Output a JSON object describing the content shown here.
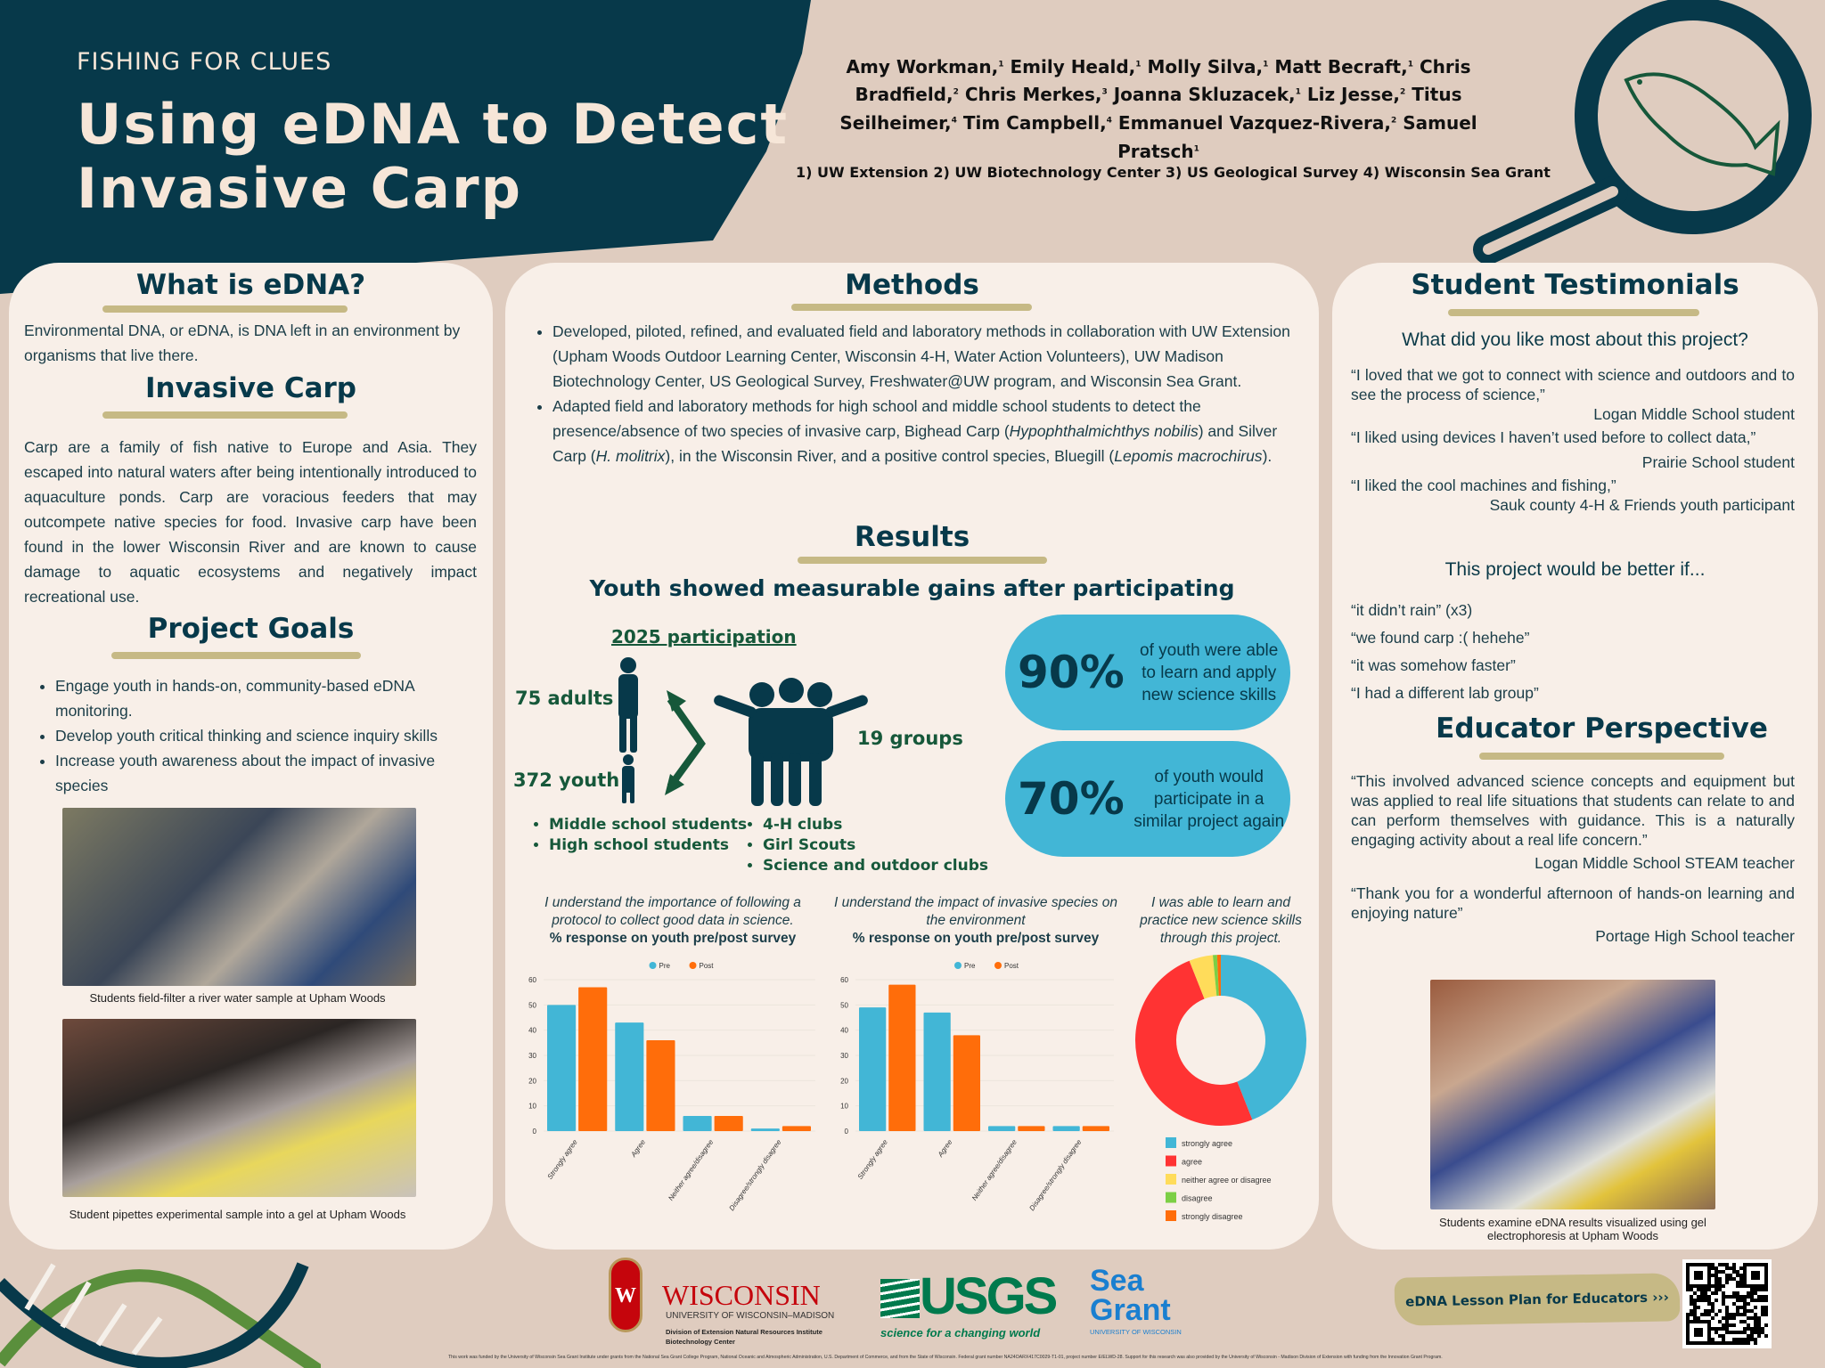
{
  "header": {
    "kicker": "FISHING FOR CLUES",
    "title_line1": "Using eDNA to Detect",
    "title_line2": "Invasive Carp",
    "authors": [
      [
        "Amy Workman",
        "1"
      ],
      [
        "Emily Heald",
        "1"
      ],
      [
        "Molly Silva",
        "1"
      ],
      [
        "Matt Becraft",
        "1"
      ],
      [
        "Chris Bradfield",
        "2"
      ],
      [
        "Chris Merkes",
        "3"
      ],
      [
        "Joanna Skluzacek",
        "1"
      ],
      [
        "Liz Jesse",
        "2"
      ],
      [
        "Titus Seilheimer",
        "4"
      ],
      [
        "Tim Campbell",
        "4"
      ],
      [
        "Emmanuel Vazquez-Rivera",
        "2"
      ],
      [
        "Samuel Pratsch",
        "1"
      ]
    ],
    "affiliations": "1) UW Extension 2) UW Biotechnology Center 3) US Geological Survey 4) Wisconsin Sea Grant"
  },
  "left": {
    "edna_title": "What is eDNA?",
    "edna_text": "Environmental DNA, or eDNA, is DNA left in an environment by organisms that live there.",
    "carp_title": "Invasive Carp",
    "carp_text": "Carp are a family of fish native to Europe and Asia. They escaped into natural waters after being intentionally introduced to aquaculture ponds. Carp are voracious feeders that may outcompete native species for food. Invasive carp have been found in the lower Wisconsin River and are known to cause damage to aquatic ecosystems and negatively impact recreational use.",
    "goals_title": "Project Goals",
    "goals": [
      "Engage youth in hands-on, community-based eDNA monitoring.",
      "Develop youth critical thinking and science inquiry skills",
      "Increase youth awareness about the impact of invasive species"
    ],
    "caption1": "Students field-filter a river water sample at Upham Woods",
    "caption2": "Student pipettes experimental sample into a gel at Upham Woods"
  },
  "methods": {
    "title": "Methods",
    "item1": "Developed, piloted, refined, and evaluated field and laboratory methods in collaboration with UW Extension (Upham Woods Outdoor Learning Center, Wisconsin 4-H, Water Action Volunteers), UW Madison Biotechnology Center, US Geological Survey, Freshwater@UW program, and Wisconsin Sea Grant.",
    "item2_a": "Adapted field and laboratory methods for high school and middle school students to detect the presence/absence of two species of invasive carp, Bighead Carp (",
    "item2_sp1": "Hypophthalmichthys nobilis",
    "item2_b": ") and Silver Carp (",
    "item2_sp2": "H. molitrix",
    "item2_c": "), in the Wisconsin River, and a positive control species, Bluegill (",
    "item2_sp3": "Lepomis macrochirus",
    "item2_d": ")."
  },
  "results": {
    "title": "Results",
    "subtitle": "Youth showed measurable gains after participating",
    "participation_title": "2025 participation",
    "adults": "75 adults",
    "youth": "372 youth",
    "groups": "19 groups",
    "youth_types": [
      "Middle school students",
      "High school students"
    ],
    "group_types": [
      "4-H clubs",
      "Girl Scouts",
      "Science and outdoor clubs"
    ],
    "stat1_pct": "90%",
    "stat1_text": "of youth were able to learn and apply new science skills",
    "stat2_pct": "70%",
    "stat2_text": "of youth would participate in a similar project again"
  },
  "chart_data": [
    {
      "type": "bar",
      "title": "I understand the importance of following a protocol to collect good data in science.",
      "subtitle": "% response on youth pre/post survey",
      "categories": [
        "Strongly agree",
        "Agree",
        "Neither agree/disagree",
        "Disagree/strongly disagree"
      ],
      "series": [
        {
          "name": "Pre",
          "values": [
            50,
            43,
            6,
            1
          ],
          "color": "#42b6d6"
        },
        {
          "name": "Post",
          "values": [
            57,
            36,
            6,
            2
          ],
          "color": "#ff6d0a"
        }
      ],
      "ylim": [
        0,
        60
      ],
      "yticks": [
        0,
        10,
        20,
        30,
        40,
        50,
        60
      ],
      "legend": "top",
      "grid": true
    },
    {
      "type": "bar",
      "title": "I understand the impact of invasive species on the environment",
      "subtitle": "% response on youth pre/post survey",
      "categories": [
        "Strongly agree",
        "Agree",
        "Neither agree/disagree",
        "Disagree/strongly disagree"
      ],
      "series": [
        {
          "name": "Pre",
          "values": [
            49,
            47,
            2,
            2
          ],
          "color": "#42b6d6"
        },
        {
          "name": "Post",
          "values": [
            58,
            38,
            2,
            2
          ],
          "color": "#ff6d0a"
        }
      ],
      "ylim": [
        0,
        60
      ],
      "yticks": [
        0,
        10,
        20,
        30,
        40,
        50,
        60
      ],
      "legend": "top",
      "grid": true
    },
    {
      "type": "pie",
      "title": "I was able to learn and practice new science skills through this project.",
      "categories": [
        "strongly agree",
        "agree",
        "neither agree or disagree",
        "disagree",
        "strongly disagree"
      ],
      "values": [
        44,
        50,
        4.5,
        0.8,
        0.7
      ],
      "colors": [
        "#42b6d6",
        "#ff3333",
        "#ffdc5a",
        "#7ccf45",
        "#ff6d0a"
      ],
      "donut": true,
      "legend": "bottom"
    }
  ],
  "right": {
    "title": "Student Testimonials",
    "q1": "What did you like most about this project?",
    "testimonials": [
      {
        "quote": "“I loved that we got to connect with science and outdoors and to see the process of science,”",
        "who": "Logan Middle School student"
      },
      {
        "quote": "“I liked using devices I haven’t used before to collect data,”",
        "who": "Prairie School student"
      },
      {
        "quote": "“I liked the cool machines and fishing,”",
        "who": "Sauk county 4-H & Friends youth participant"
      }
    ],
    "q2": "This project would be better if...",
    "better": [
      "“it didn’t rain” (x3)",
      "“we found carp :( hehehe”",
      "“it was somehow faster”",
      "“I had a different lab group”"
    ],
    "educator_title": "Educator Perspective",
    "educator": [
      {
        "quote": "“This involved advanced science concepts and equipment but was applied to real life situations that students can relate to and can perform themselves with guidance. This is a naturally engaging activity about a real life concern.”",
        "who": "Logan Middle School STEAM teacher"
      },
      {
        "quote": "“Thank you for a wonderful afternoon of hands-on learning and enjoying nature”",
        "who": "Portage High School teacher"
      }
    ],
    "caption": "Students examine eDNA results visualized using gel electrophoresis at Upham Woods"
  },
  "footer": {
    "uw_name": "WISCONSIN",
    "uw_sub": "UNIVERSITY OF WISCONSIN–MADISON",
    "uw_div": "Division of Extension Natural Resources Institute",
    "uw_div2": "Biotechnology Center",
    "usgs": "USGS",
    "usgs_tag": "science for a changing world",
    "seagrant1": "Sea",
    "seagrant2": "Grant",
    "seagrant_sub": "UNIVERSITY OF WISCONSIN",
    "lesson_link": "eDNA Lesson Plan for Educators ›››",
    "funding": "This work was funded by the University of Wisconsin Sea Grant Institute under grants from the National Sea Grant College Program, National Oceanic and Atmospheric Administration, U.S. Department of Commerce, and from the State of Wisconsin. Federal grant number NA24OARX417C0029-T1-01, project number E/ELWD-28. Support for this research was also provided by the University of Wisconsin - Madison Division of Extension with funding from the Innovation Grant Program."
  },
  "colors": {
    "navy": "#07394a",
    "beige": "#dfccbf",
    "panel": "#f8efe8",
    "green": "#16583a",
    "accent_bar": "#c6b985",
    "pre": "#42b6d6",
    "post": "#ff6d0a"
  }
}
